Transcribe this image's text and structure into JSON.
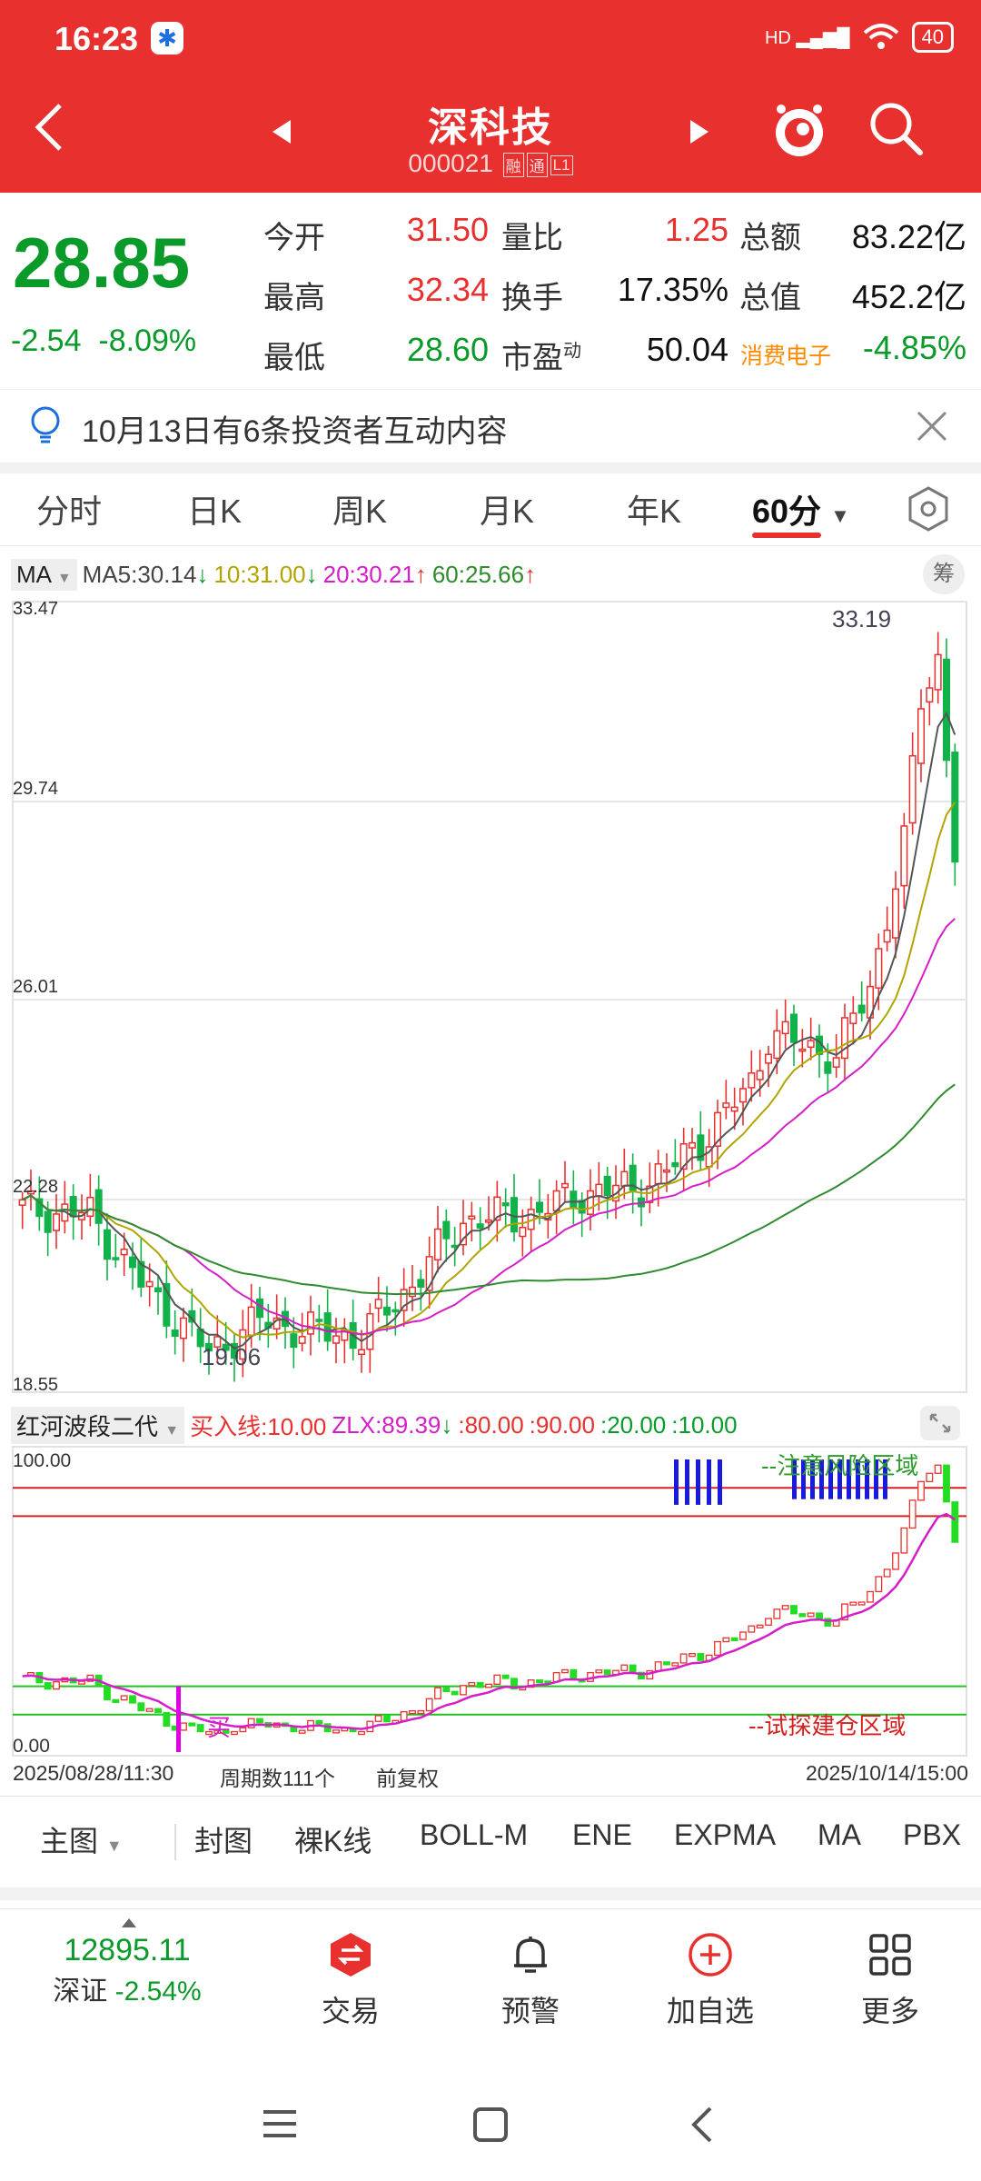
{
  "status": {
    "time": "16:23",
    "battery": "40",
    "network": "HD"
  },
  "header": {
    "name": "深科技",
    "code": "000021",
    "tag1": "融",
    "tag2": "通",
    "tag3": "L1"
  },
  "quote": {
    "price": "28.85",
    "change": "-2.54",
    "change_pct": "-8.09%",
    "items": {
      "open": {
        "label": "今开",
        "value": "31.50"
      },
      "high": {
        "label": "最高",
        "value": "32.34"
      },
      "low": {
        "label": "最低",
        "value": "28.60"
      },
      "vol_ratio": {
        "label": "量比",
        "value": "1.25"
      },
      "turnover": {
        "label": "换手",
        "value": "17.35%"
      },
      "pe": {
        "label": "市盈",
        "sup": "动",
        "value": "50.04"
      },
      "amount": {
        "label": "总额",
        "value": "83.22亿"
      },
      "mcap": {
        "label": "总值",
        "value": "452.2亿"
      },
      "sector": {
        "label": "消费电子",
        "value": "-4.85%"
      }
    }
  },
  "notice": {
    "text": "10月13日有6条投资者互动内容"
  },
  "tabs": [
    "分时",
    "日K",
    "周K",
    "月K",
    "年K",
    "60分"
  ],
  "ma_bar": {
    "selector": "MA",
    "ma5": "MA5:30.14",
    "ma10": "10:31.00",
    "ma20": "20:30.21",
    "ma60": "60:25.66",
    "chip_btn": "筹"
  },
  "main_chart": {
    "y_labels": [
      "33.47",
      "29.74",
      "26.01",
      "22.28",
      "18.55"
    ],
    "high_mark": "33.19",
    "low_mark": "19.06",
    "colors": {
      "up": "#e8312f",
      "down": "#12b24a",
      "ma5": "#555555",
      "ma10": "#b0a500",
      "ma20": "#d61ec8",
      "ma60": "#2e8b2e"
    }
  },
  "indicator": {
    "name": "红河波段二代",
    "buy_line": "买入线:10.00",
    "zlx": "ZLX:89.39",
    "l80": ":80.00",
    "l90": ":90.00",
    "l20": ":20.00",
    "l10": ":10.00",
    "y_top": "100.00",
    "y_bottom": "0.00",
    "zone_top": "--注意风险区域",
    "zone_bottom": "--试探建仓区域",
    "buy_mark": "买"
  },
  "chart_footer": {
    "start": "2025/08/28/11:30",
    "count": "周期数111个",
    "mode": "前复权",
    "end": "2025/10/14/15:00"
  },
  "toolbar": [
    "主图",
    "封图",
    "裸K线",
    "BOLL-M",
    "ENE",
    "EXPMA",
    "MA",
    "PBX"
  ],
  "bottom_nav": {
    "index_value": "12895.11",
    "index_name": "深证",
    "index_pct": "-2.54%",
    "trade": "交易",
    "alert": "预警",
    "add": "加自选",
    "more": "更多"
  }
}
